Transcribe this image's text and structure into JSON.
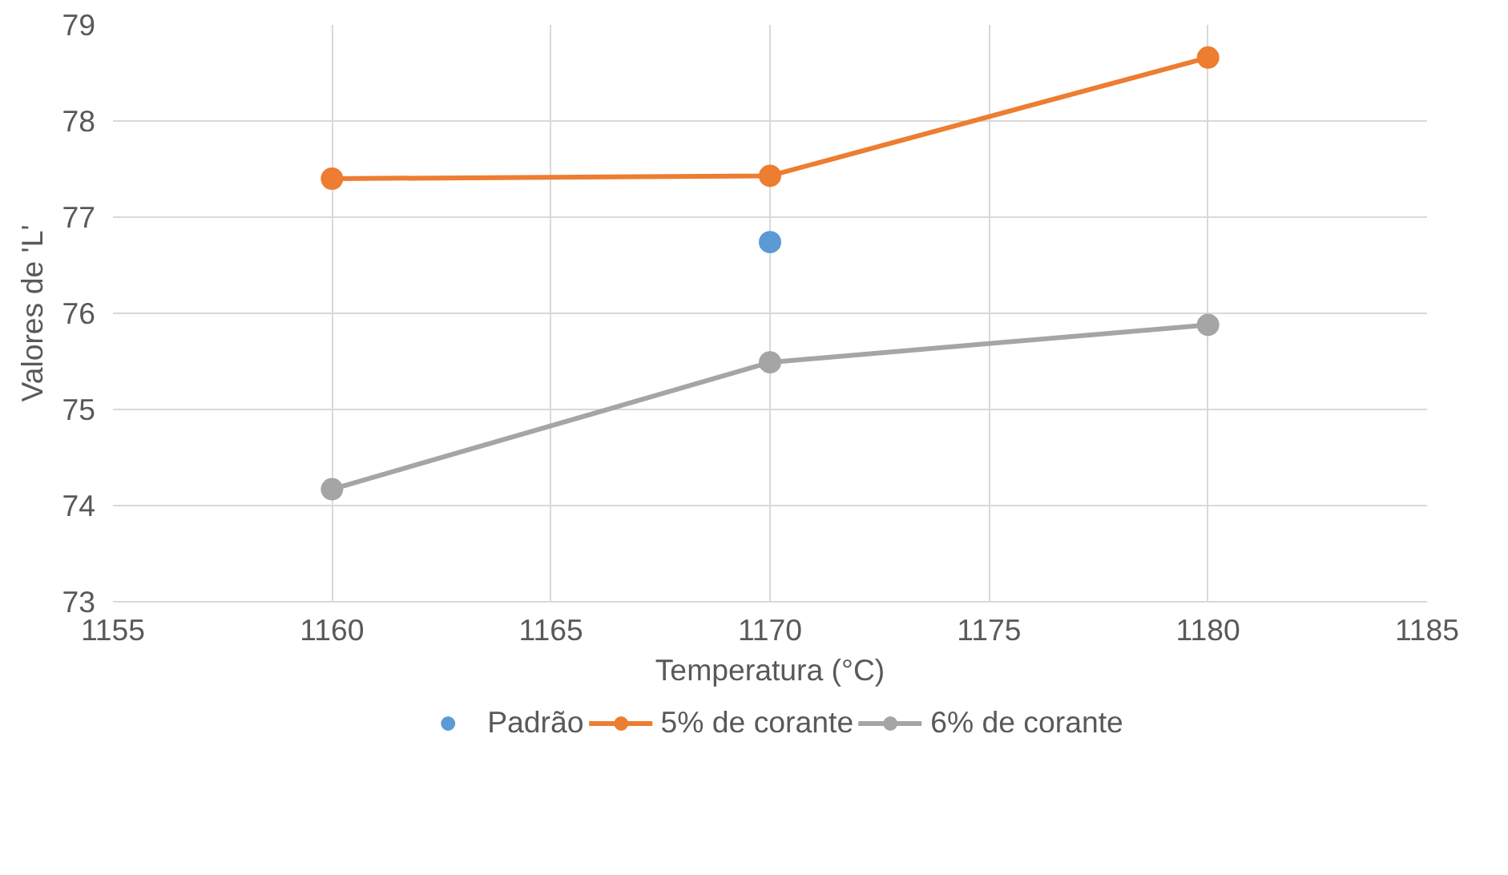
{
  "chart_data": {
    "type": "line",
    "xlabel": "Temperatura (°C)",
    "ylabel": "Valores de 'L'",
    "x": [
      1160,
      1170,
      1180
    ],
    "series": [
      {
        "name": "Padrão",
        "color": "#5b9bd5",
        "values": [
          null,
          76.74,
          null
        ]
      },
      {
        "name": "5% de corante",
        "color": "#ed7d31",
        "values": [
          77.4,
          77.43,
          78.66
        ]
      },
      {
        "name": "6% de corante",
        "color": "#a5a5a5",
        "values": [
          74.17,
          75.49,
          75.88
        ]
      }
    ],
    "xlim": [
      1155,
      1185
    ],
    "xticks": [
      1155,
      1160,
      1165,
      1170,
      1175,
      1180,
      1185
    ],
    "ylim": [
      73,
      79
    ],
    "yticks": [
      73,
      74,
      75,
      76,
      77,
      78,
      79
    ],
    "grid": true,
    "legend": "bottom",
    "marker": "circle",
    "line_style": "solid"
  }
}
